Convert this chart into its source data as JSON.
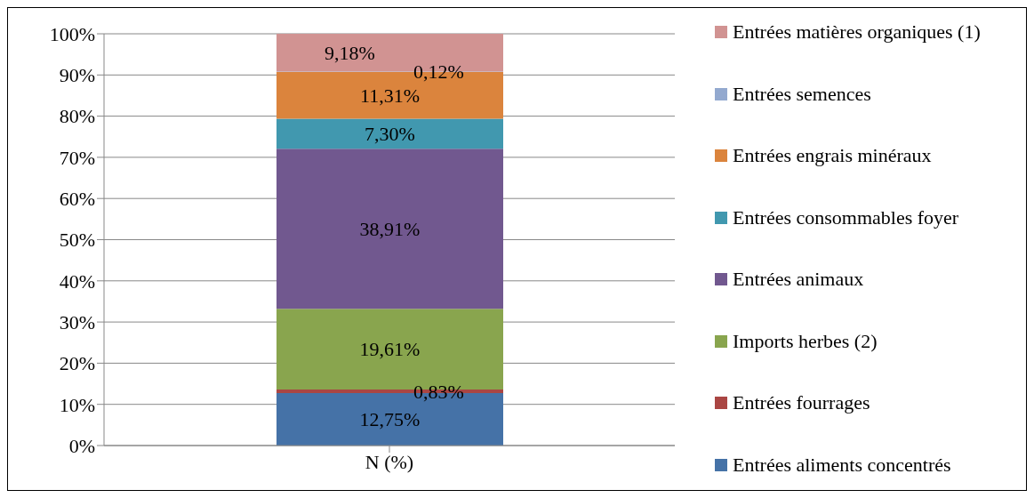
{
  "chart_data": {
    "type": "bar",
    "stacked": true,
    "categories": [
      "N (%)"
    ],
    "legend": "right",
    "grid": "y",
    "ylim": [
      0,
      100
    ],
    "yticks": [
      {
        "value": 0,
        "label": "0%"
      },
      {
        "value": 10,
        "label": "10%"
      },
      {
        "value": 20,
        "label": "20%"
      },
      {
        "value": 30,
        "label": "30%"
      },
      {
        "value": 40,
        "label": "40%"
      },
      {
        "value": 50,
        "label": "50%"
      },
      {
        "value": 60,
        "label": "60%"
      },
      {
        "value": 70,
        "label": "70%"
      },
      {
        "value": 80,
        "label": "80%"
      },
      {
        "value": 90,
        "label": "90%"
      },
      {
        "value": 100,
        "label": "100%"
      }
    ],
    "series": [
      {
        "name": "Entrées aliments concentrés",
        "color": "#4572a7",
        "values": [
          12.75
        ],
        "value_labels": [
          "12,75%"
        ]
      },
      {
        "name": "Entrées fourrages",
        "color": "#aa4643",
        "values": [
          0.83
        ],
        "value_labels": [
          "0,83%"
        ]
      },
      {
        "name": "Imports herbes (2)",
        "color": "#89a54e",
        "values": [
          19.61
        ],
        "value_labels": [
          "19,61%"
        ]
      },
      {
        "name": "Entrées animaux",
        "color": "#71588f",
        "values": [
          38.91
        ],
        "value_labels": [
          "38,91%"
        ]
      },
      {
        "name": "Entrées consommables foyer",
        "color": "#4198af",
        "values": [
          7.3
        ],
        "value_labels": [
          "7,30%"
        ]
      },
      {
        "name": "Entrées engrais minéraux",
        "color": "#db843d",
        "values": [
          11.31
        ],
        "value_labels": [
          "11,31%"
        ]
      },
      {
        "name": "Entrées semences",
        "color": "#93a9cf",
        "values": [
          0.12
        ],
        "value_labels": [
          "0,12%"
        ]
      },
      {
        "name": "Entrées matières organiques (1)",
        "color": "#d19392",
        "values": [
          9.18
        ],
        "value_labels": [
          "9,18%"
        ]
      }
    ]
  }
}
